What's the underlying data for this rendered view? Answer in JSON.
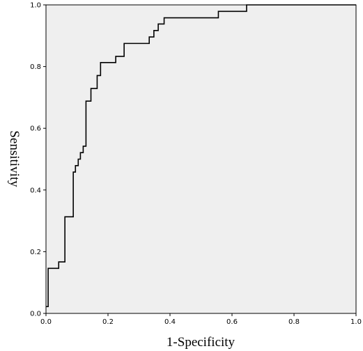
{
  "chart_data": {
    "type": "line",
    "title": "",
    "xlabel": "1-Specificity",
    "ylabel": "Sensitivity",
    "xlim": [
      0.0,
      1.0
    ],
    "ylim": [
      0.0,
      1.0
    ],
    "x_ticks": [
      "0.0",
      "0.2",
      "0.4",
      "0.6",
      "0.8",
      "1.0"
    ],
    "y_ticks": [
      "0.0",
      "0.2",
      "0.4",
      "0.6",
      "0.8",
      "1.0"
    ],
    "grid": false,
    "legend": "none",
    "colors": {
      "plot_background": "#efefef",
      "line": "#000000",
      "axis": "#000000"
    },
    "series": [
      {
        "x": [
          0.0,
          0.007,
          0.007,
          0.041,
          0.041,
          0.061,
          0.061,
          0.088,
          0.088,
          0.095,
          0.095,
          0.104,
          0.104,
          0.111,
          0.111,
          0.12,
          0.12,
          0.129,
          0.129,
          0.138,
          0.138,
          0.145,
          0.145,
          0.165,
          0.165,
          0.176,
          0.176,
          0.195,
          0.195,
          0.225,
          0.225,
          0.252,
          0.252,
          0.333,
          0.333,
          0.348,
          0.348,
          0.362,
          0.362,
          0.381,
          0.381,
          0.556,
          0.556,
          0.647,
          0.647,
          1.0
        ],
        "y": [
          0.022,
          0.022,
          0.146,
          0.146,
          0.167,
          0.167,
          0.313,
          0.313,
          0.458,
          0.458,
          0.479,
          0.479,
          0.5,
          0.5,
          0.521,
          0.521,
          0.542,
          0.542,
          0.688,
          0.688,
          0.688,
          0.688,
          0.729,
          0.729,
          0.771,
          0.771,
          0.813,
          0.813,
          0.813,
          0.813,
          0.833,
          0.833,
          0.875,
          0.875,
          0.896,
          0.896,
          0.917,
          0.917,
          0.938,
          0.938,
          0.958,
          0.958,
          0.979,
          0.979,
          1.0,
          1.0
        ]
      }
    ]
  }
}
